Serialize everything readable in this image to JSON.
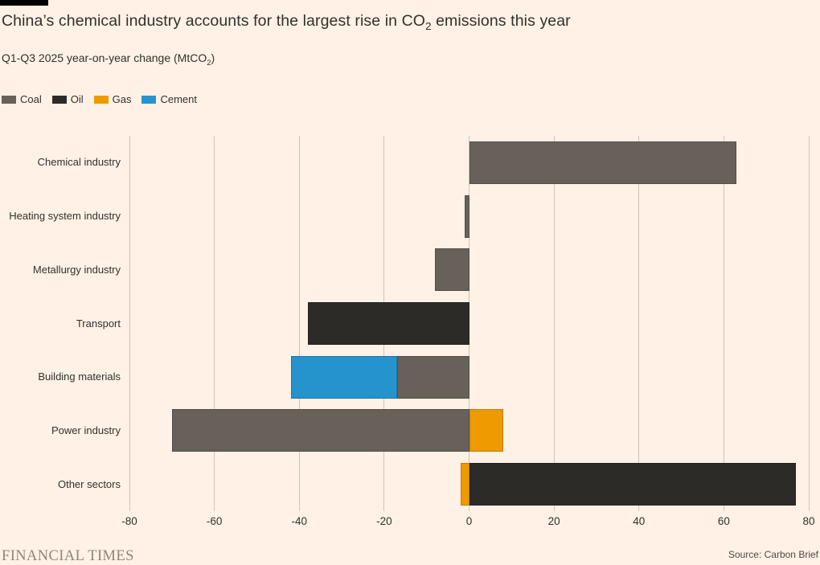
{
  "header": {
    "title": {
      "prefix": "China’s chemical industry accounts for the largest rise in CO",
      "sub": "2",
      "suffix": " emissions this year"
    },
    "subtitle": {
      "prefix": "Q1-Q3 2025 year-on-year change (MtCO",
      "sub": "2",
      "suffix": ")"
    }
  },
  "colors": {
    "background": "#FFF1E5",
    "coal": "#67615A",
    "oil": "#2D2B28",
    "gas": "#EE9A00",
    "cement": "#2593CD",
    "gridline": "#CEC5BC",
    "text": "#33302C",
    "brand": "#8F8578"
  },
  "chart_data": {
    "type": "bar",
    "orientation": "horizontal",
    "stacked": true,
    "grid": true,
    "legend_position": "top-left",
    "title": "China’s chemical industry accounts for the largest rise in CO2 emissions this year",
    "subtitle": "Q1-Q3 2025 year-on-year change (MtCO2)",
    "xlabel": "",
    "ylabel": "",
    "xlim": [
      -80,
      80
    ],
    "xticks": [
      -80,
      -60,
      -40,
      -20,
      0,
      20,
      40,
      60,
      80
    ],
    "categories": [
      "Chemical industry",
      "Heating system industry",
      "Metallurgy industry",
      "Transport",
      "Building materials",
      "Power industry",
      "Other sectors"
    ],
    "series": [
      {
        "name": "Coal",
        "color_key": "coal",
        "values": [
          63,
          -1,
          -8,
          0,
          -17,
          -70,
          0
        ]
      },
      {
        "name": "Oil",
        "color_key": "oil",
        "values": [
          0,
          0,
          0,
          -38,
          0,
          0,
          77
        ]
      },
      {
        "name": "Gas",
        "color_key": "gas",
        "values": [
          0,
          0,
          0,
          0,
          0,
          8,
          -2
        ]
      },
      {
        "name": "Cement",
        "color_key": "cement",
        "values": [
          0,
          0,
          0,
          0,
          -25,
          0,
          0
        ]
      }
    ]
  },
  "footer": {
    "brand": "FINANCIAL TIMES",
    "source": "Source: Carbon Brief"
  }
}
